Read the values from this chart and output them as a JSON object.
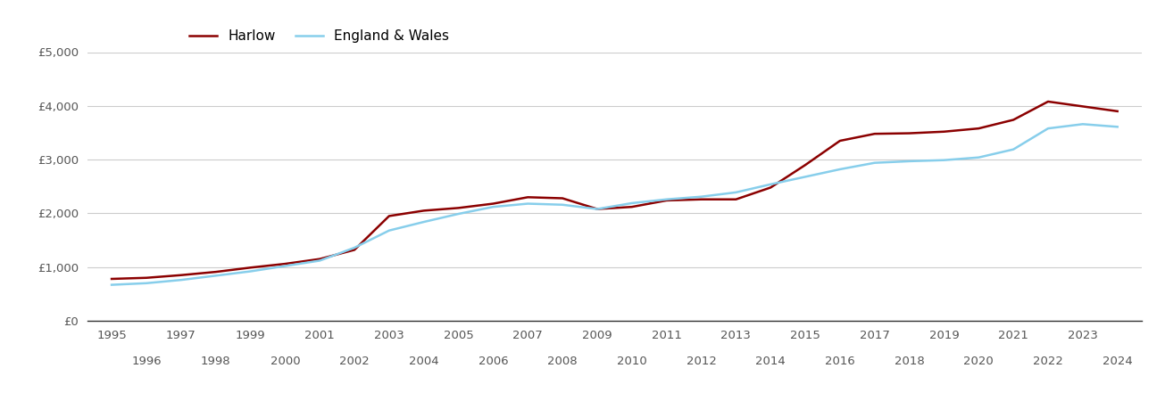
{
  "harlow_label": "Harlow",
  "ew_label": "England & Wales",
  "harlow_color": "#8B0000",
  "ew_color": "#87CEEB",
  "line_width": 1.8,
  "background_color": "#ffffff",
  "years": [
    1995,
    1996,
    1997,
    1998,
    1999,
    2000,
    2001,
    2002,
    2003,
    2004,
    2005,
    2006,
    2007,
    2008,
    2009,
    2010,
    2011,
    2012,
    2013,
    2014,
    2015,
    2016,
    2017,
    2018,
    2019,
    2020,
    2021,
    2022,
    2023,
    2024
  ],
  "harlow": [
    780,
    800,
    850,
    910,
    990,
    1060,
    1150,
    1320,
    1950,
    2050,
    2100,
    2180,
    2300,
    2280,
    2080,
    2120,
    2240,
    2260,
    2260,
    2480,
    2900,
    3350,
    3480,
    3490,
    3520,
    3580,
    3740,
    4080,
    3990,
    3900
  ],
  "england_wales": [
    670,
    700,
    760,
    840,
    920,
    1020,
    1120,
    1360,
    1680,
    1840,
    1990,
    2120,
    2180,
    2160,
    2080,
    2190,
    2260,
    2310,
    2390,
    2540,
    2680,
    2820,
    2940,
    2970,
    2990,
    3040,
    3190,
    3580,
    3660,
    3610
  ],
  "ylim": [
    0,
    5000
  ],
  "yticks": [
    0,
    1000,
    2000,
    3000,
    4000,
    5000
  ],
  "ytick_labels": [
    "£0",
    "£1,000",
    "£2,000",
    "£3,000",
    "£4,000",
    "£5,000"
  ],
  "grid_color": "#cccccc",
  "spine_color": "#333333",
  "tick_label_color": "#555555",
  "tick_label_fontsize": 9.5
}
